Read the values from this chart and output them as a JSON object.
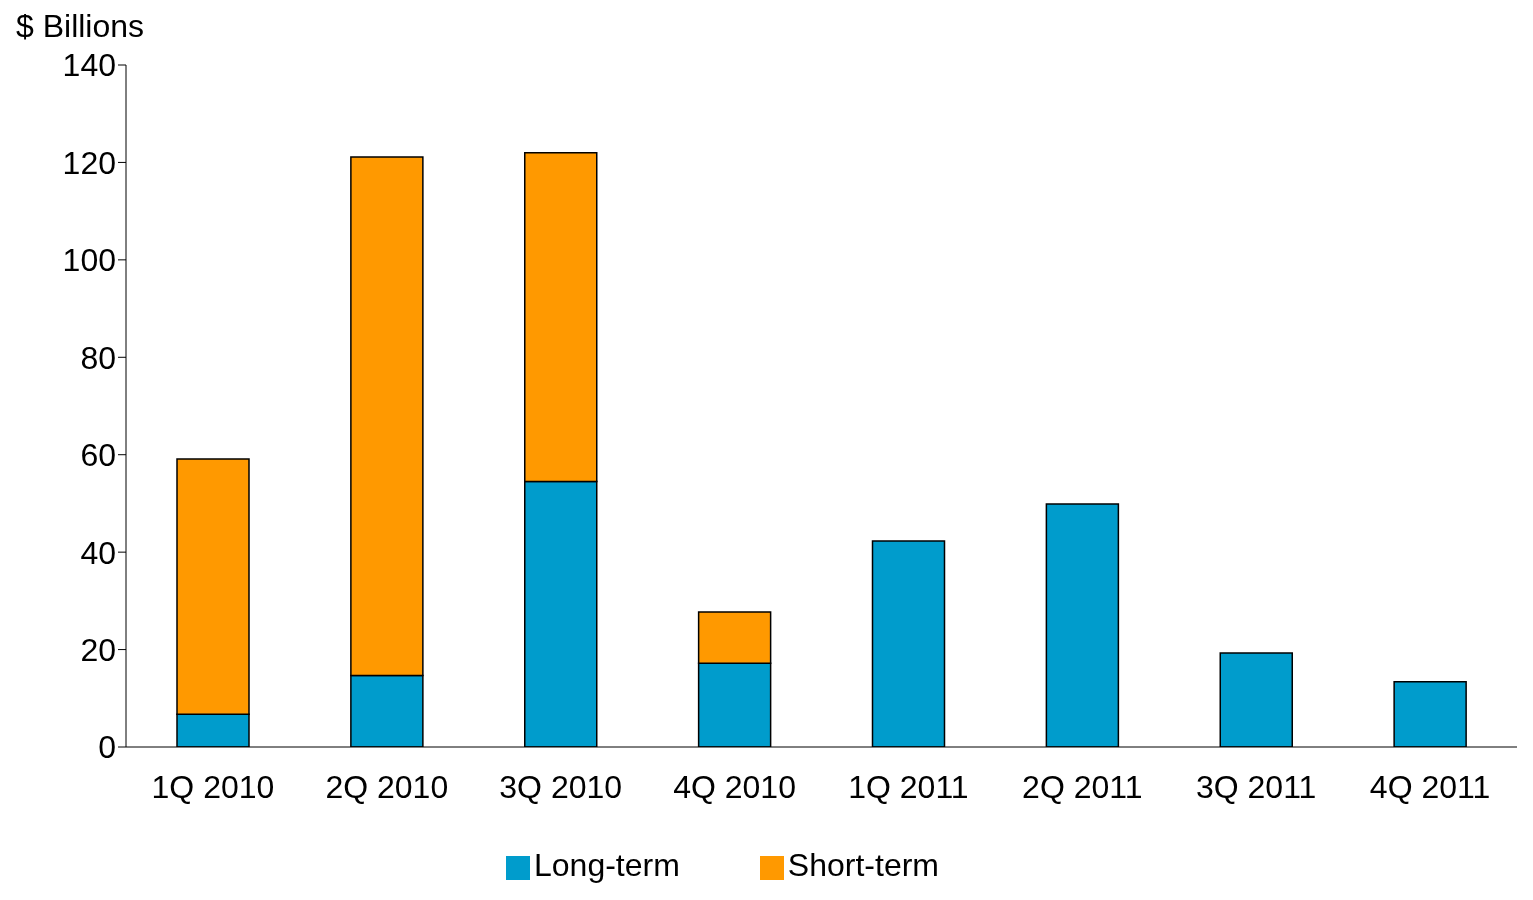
{
  "chart_data": {
    "type": "bar",
    "stacked": true,
    "ylabel": "$ Billions",
    "categories": [
      "1Q 2010",
      "2Q 2010",
      "3Q 2010",
      "4Q 2010",
      "1Q 2011",
      "2Q 2011",
      "3Q 2011",
      "4Q 2011"
    ],
    "series": [
      {
        "name": "Long-term",
        "color": "#009ccc",
        "values": [
          6.7,
          14.7,
          54.5,
          17.2,
          42.3,
          49.9,
          19.3,
          13.4
        ]
      },
      {
        "name": "Short-term",
        "color": "#ff9900",
        "values": [
          52.4,
          106.4,
          67.5,
          10.5,
          null,
          null,
          null,
          null
        ]
      }
    ],
    "ylim": [
      0,
      140
    ],
    "yticks": [
      0,
      20,
      40,
      60,
      80,
      100,
      120,
      140
    ],
    "grid": false,
    "legend": "bottom"
  }
}
